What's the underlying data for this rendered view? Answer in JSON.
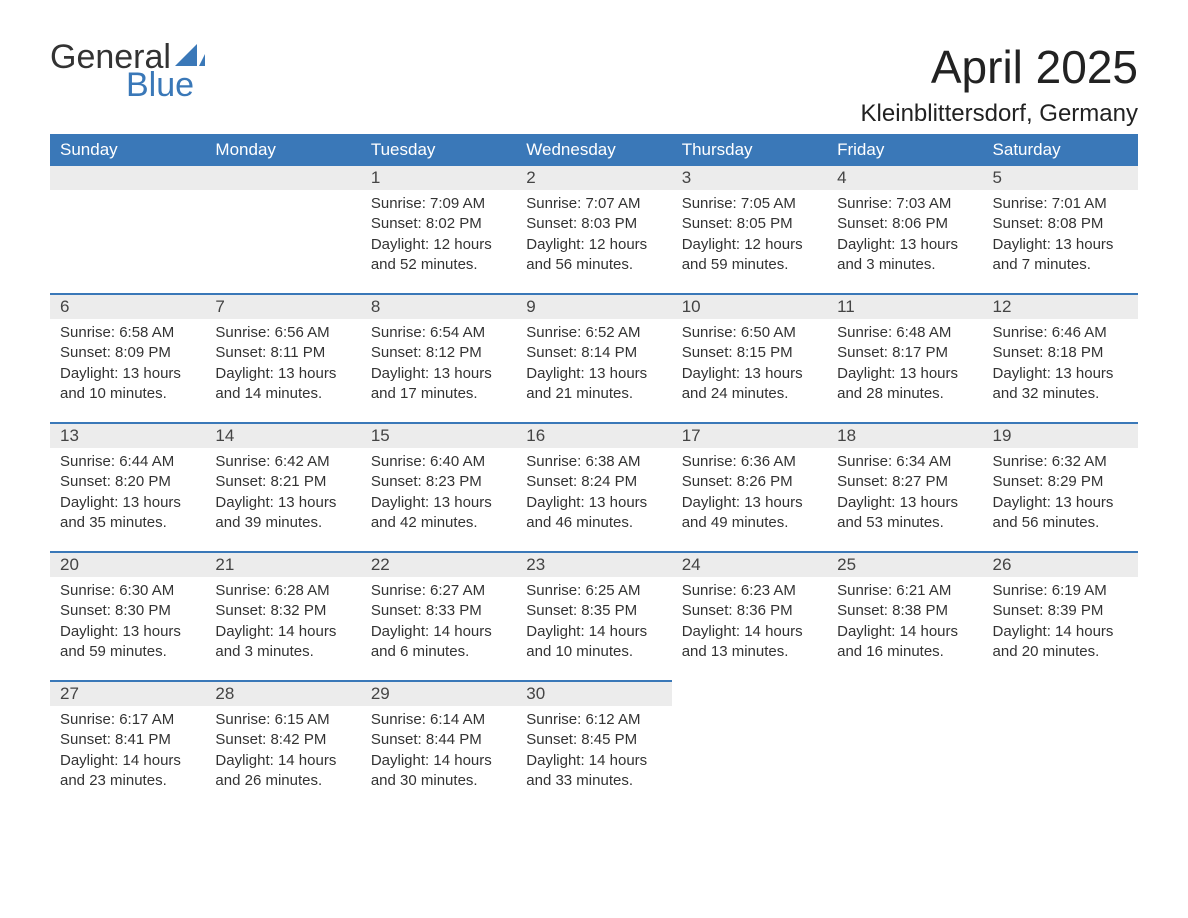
{
  "brand": {
    "line1": "General",
    "line2": "Blue",
    "accent_color": "#3a78b8"
  },
  "title": "April 2025",
  "location": "Kleinblittersdorf, Germany",
  "colors": {
    "header_bg": "#3a78b8",
    "header_text": "#ffffff",
    "daynum_bg": "#ececec",
    "daynum_border": "#3a78b8",
    "body_text": "#333333",
    "page_bg": "#ffffff"
  },
  "weekdays": [
    "Sunday",
    "Monday",
    "Tuesday",
    "Wednesday",
    "Thursday",
    "Friday",
    "Saturday"
  ],
  "weeks": [
    [
      null,
      null,
      {
        "n": "1",
        "sr": "Sunrise: 7:09 AM",
        "ss": "Sunset: 8:02 PM",
        "d1": "Daylight: 12 hours",
        "d2": "and 52 minutes."
      },
      {
        "n": "2",
        "sr": "Sunrise: 7:07 AM",
        "ss": "Sunset: 8:03 PM",
        "d1": "Daylight: 12 hours",
        "d2": "and 56 minutes."
      },
      {
        "n": "3",
        "sr": "Sunrise: 7:05 AM",
        "ss": "Sunset: 8:05 PM",
        "d1": "Daylight: 12 hours",
        "d2": "and 59 minutes."
      },
      {
        "n": "4",
        "sr": "Sunrise: 7:03 AM",
        "ss": "Sunset: 8:06 PM",
        "d1": "Daylight: 13 hours",
        "d2": "and 3 minutes."
      },
      {
        "n": "5",
        "sr": "Sunrise: 7:01 AM",
        "ss": "Sunset: 8:08 PM",
        "d1": "Daylight: 13 hours",
        "d2": "and 7 minutes."
      }
    ],
    [
      {
        "n": "6",
        "sr": "Sunrise: 6:58 AM",
        "ss": "Sunset: 8:09 PM",
        "d1": "Daylight: 13 hours",
        "d2": "and 10 minutes."
      },
      {
        "n": "7",
        "sr": "Sunrise: 6:56 AM",
        "ss": "Sunset: 8:11 PM",
        "d1": "Daylight: 13 hours",
        "d2": "and 14 minutes."
      },
      {
        "n": "8",
        "sr": "Sunrise: 6:54 AM",
        "ss": "Sunset: 8:12 PM",
        "d1": "Daylight: 13 hours",
        "d2": "and 17 minutes."
      },
      {
        "n": "9",
        "sr": "Sunrise: 6:52 AM",
        "ss": "Sunset: 8:14 PM",
        "d1": "Daylight: 13 hours",
        "d2": "and 21 minutes."
      },
      {
        "n": "10",
        "sr": "Sunrise: 6:50 AM",
        "ss": "Sunset: 8:15 PM",
        "d1": "Daylight: 13 hours",
        "d2": "and 24 minutes."
      },
      {
        "n": "11",
        "sr": "Sunrise: 6:48 AM",
        "ss": "Sunset: 8:17 PM",
        "d1": "Daylight: 13 hours",
        "d2": "and 28 minutes."
      },
      {
        "n": "12",
        "sr": "Sunrise: 6:46 AM",
        "ss": "Sunset: 8:18 PM",
        "d1": "Daylight: 13 hours",
        "d2": "and 32 minutes."
      }
    ],
    [
      {
        "n": "13",
        "sr": "Sunrise: 6:44 AM",
        "ss": "Sunset: 8:20 PM",
        "d1": "Daylight: 13 hours",
        "d2": "and 35 minutes."
      },
      {
        "n": "14",
        "sr": "Sunrise: 6:42 AM",
        "ss": "Sunset: 8:21 PM",
        "d1": "Daylight: 13 hours",
        "d2": "and 39 minutes."
      },
      {
        "n": "15",
        "sr": "Sunrise: 6:40 AM",
        "ss": "Sunset: 8:23 PM",
        "d1": "Daylight: 13 hours",
        "d2": "and 42 minutes."
      },
      {
        "n": "16",
        "sr": "Sunrise: 6:38 AM",
        "ss": "Sunset: 8:24 PM",
        "d1": "Daylight: 13 hours",
        "d2": "and 46 minutes."
      },
      {
        "n": "17",
        "sr": "Sunrise: 6:36 AM",
        "ss": "Sunset: 8:26 PM",
        "d1": "Daylight: 13 hours",
        "d2": "and 49 minutes."
      },
      {
        "n": "18",
        "sr": "Sunrise: 6:34 AM",
        "ss": "Sunset: 8:27 PM",
        "d1": "Daylight: 13 hours",
        "d2": "and 53 minutes."
      },
      {
        "n": "19",
        "sr": "Sunrise: 6:32 AM",
        "ss": "Sunset: 8:29 PM",
        "d1": "Daylight: 13 hours",
        "d2": "and 56 minutes."
      }
    ],
    [
      {
        "n": "20",
        "sr": "Sunrise: 6:30 AM",
        "ss": "Sunset: 8:30 PM",
        "d1": "Daylight: 13 hours",
        "d2": "and 59 minutes."
      },
      {
        "n": "21",
        "sr": "Sunrise: 6:28 AM",
        "ss": "Sunset: 8:32 PM",
        "d1": "Daylight: 14 hours",
        "d2": "and 3 minutes."
      },
      {
        "n": "22",
        "sr": "Sunrise: 6:27 AM",
        "ss": "Sunset: 8:33 PM",
        "d1": "Daylight: 14 hours",
        "d2": "and 6 minutes."
      },
      {
        "n": "23",
        "sr": "Sunrise: 6:25 AM",
        "ss": "Sunset: 8:35 PM",
        "d1": "Daylight: 14 hours",
        "d2": "and 10 minutes."
      },
      {
        "n": "24",
        "sr": "Sunrise: 6:23 AM",
        "ss": "Sunset: 8:36 PM",
        "d1": "Daylight: 14 hours",
        "d2": "and 13 minutes."
      },
      {
        "n": "25",
        "sr": "Sunrise: 6:21 AM",
        "ss": "Sunset: 8:38 PM",
        "d1": "Daylight: 14 hours",
        "d2": "and 16 minutes."
      },
      {
        "n": "26",
        "sr": "Sunrise: 6:19 AM",
        "ss": "Sunset: 8:39 PM",
        "d1": "Daylight: 14 hours",
        "d2": "and 20 minutes."
      }
    ],
    [
      {
        "n": "27",
        "sr": "Sunrise: 6:17 AM",
        "ss": "Sunset: 8:41 PM",
        "d1": "Daylight: 14 hours",
        "d2": "and 23 minutes."
      },
      {
        "n": "28",
        "sr": "Sunrise: 6:15 AM",
        "ss": "Sunset: 8:42 PM",
        "d1": "Daylight: 14 hours",
        "d2": "and 26 minutes."
      },
      {
        "n": "29",
        "sr": "Sunrise: 6:14 AM",
        "ss": "Sunset: 8:44 PM",
        "d1": "Daylight: 14 hours",
        "d2": "and 30 minutes."
      },
      {
        "n": "30",
        "sr": "Sunrise: 6:12 AM",
        "ss": "Sunset: 8:45 PM",
        "d1": "Daylight: 14 hours",
        "d2": "and 33 minutes."
      },
      null,
      null,
      null
    ]
  ]
}
